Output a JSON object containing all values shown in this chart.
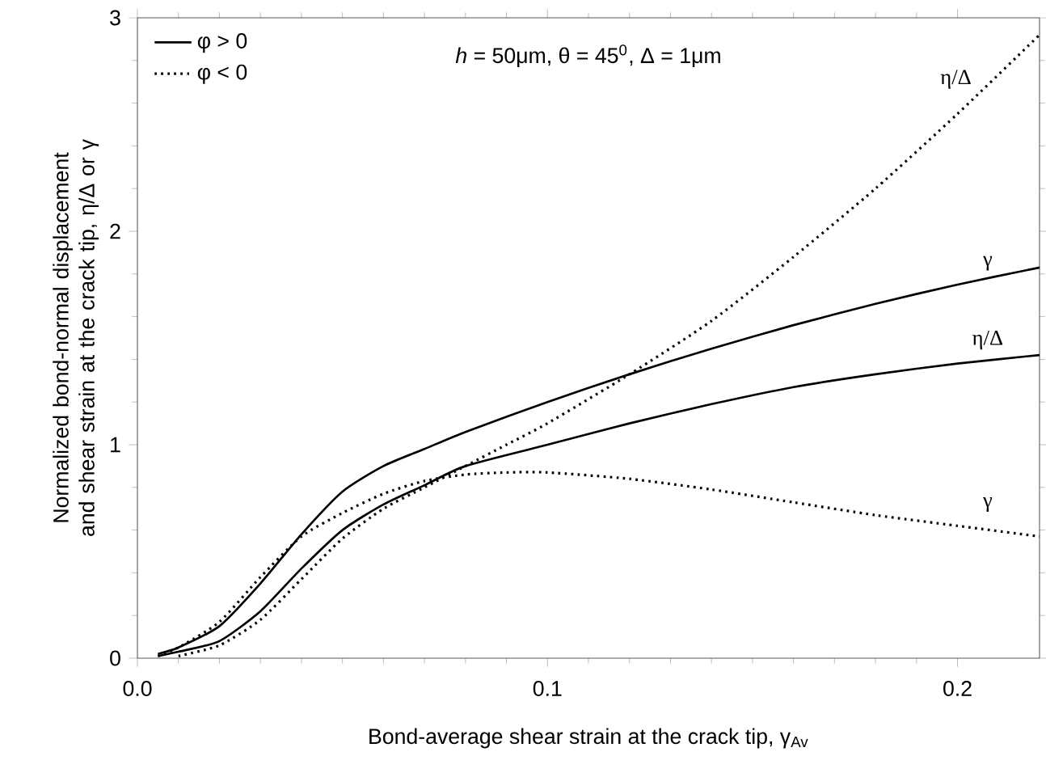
{
  "chart_data": {
    "type": "line",
    "xlabel": "Bond-average shear strain at the crack tip, γ$_{Av}$",
    "ylabel": "Normalized bond-normal displacement and shear strain at the crack tip, η/Δ or γ",
    "xlim": [
      0,
      0.22
    ],
    "ylim": [
      0,
      3
    ],
    "xticks": [
      {
        "value": 0,
        "label": "0.0"
      },
      0.1,
      0.2
    ],
    "yticks": [
      0,
      1,
      2,
      3
    ],
    "legend": "top left",
    "grid": false,
    "series": [
      {
        "name": "φ > 0",
        "color": "#000000",
        "line_style": "solid",
        "x": [
          0.005,
          0.01,
          0.02,
          0.03,
          0.04,
          0.05,
          0.06,
          0.07,
          0.08,
          0.1,
          0.12,
          0.14,
          0.16,
          0.18,
          0.2,
          0.22
        ],
        "values": [
          0.02,
          0.05,
          0.15,
          0.35,
          0.58,
          0.78,
          0.9,
          0.98,
          1.06,
          1.2,
          1.33,
          1.45,
          1.56,
          1.66,
          1.75,
          1.83
        ]
      },
      {
        "name": "φ < 0",
        "color": "#000000",
        "line_style": "dotted",
        "x": [
          0.01,
          0.02,
          0.03,
          0.04,
          0.05,
          0.06,
          0.07,
          0.08,
          0.09,
          0.1,
          0.12,
          0.14,
          0.16,
          0.18,
          0.2,
          0.22
        ],
        "values": [
          0.01,
          0.06,
          0.18,
          0.37,
          0.56,
          0.7,
          0.8,
          0.9,
          1.0,
          1.1,
          1.33,
          1.58,
          1.88,
          2.2,
          2.55,
          2.92
        ]
      },
      {
        "color": "#000000",
        "line_style": "solid",
        "x": [
          0.005,
          0.01,
          0.02,
          0.03,
          0.04,
          0.05,
          0.06,
          0.07,
          0.08,
          0.1,
          0.12,
          0.14,
          0.16,
          0.18,
          0.2,
          0.22
        ],
        "values": [
          0.01,
          0.03,
          0.08,
          0.22,
          0.42,
          0.6,
          0.72,
          0.81,
          0.9,
          1.0,
          1.1,
          1.19,
          1.27,
          1.33,
          1.38,
          1.42
        ]
      },
      {
        "color": "#000000",
        "line_style": "dotted",
        "x": [
          0.005,
          0.01,
          0.02,
          0.03,
          0.04,
          0.05,
          0.06,
          0.07,
          0.08,
          0.09,
          0.1,
          0.12,
          0.14,
          0.16,
          0.18,
          0.2,
          0.22
        ],
        "values": [
          0.01,
          0.05,
          0.17,
          0.38,
          0.57,
          0.68,
          0.77,
          0.83,
          0.86,
          0.87,
          0.87,
          0.84,
          0.79,
          0.73,
          0.67,
          0.62,
          0.57
        ]
      }
    ],
    "annotations": [
      "*h* = 50μm, θ = 45$^{0}$, Δ = 1μm",
      "γ",
      "η/Δ",
      "η/Δ",
      "γ"
    ]
  }
}
